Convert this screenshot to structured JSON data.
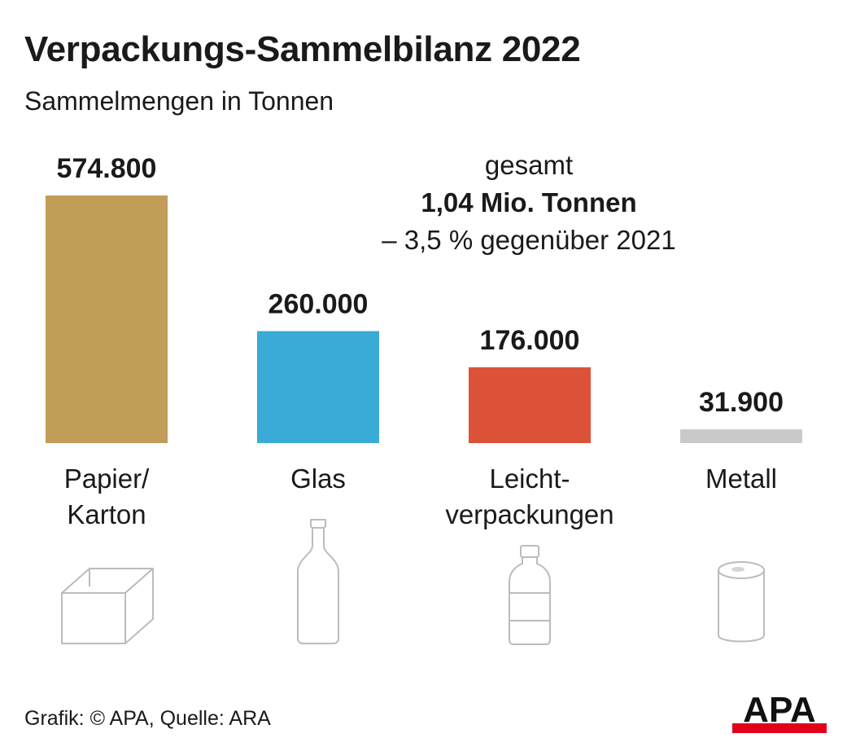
{
  "title": "Verpackungs-Sammelbilanz 2022",
  "subtitle": "Sammelmengen in Tonnen",
  "total": {
    "line1": "gesamt",
    "line2": "1,04 Mio. Tonnen",
    "line3": "– 3,5 % gegenüber 2021"
  },
  "chart_data": {
    "type": "bar",
    "title": "Verpackungs-Sammelbilanz 2022",
    "subtitle": "Sammelmengen in Tonnen",
    "categories": [
      "Papier/ Karton",
      "Glas",
      "Leicht­verpackungen",
      "Metall"
    ],
    "values": [
      574800,
      260000,
      176000,
      31900
    ],
    "value_labels": [
      "574.800",
      "260.000",
      "176.000",
      "31.900"
    ],
    "colors": [
      "#c29d57",
      "#3aaad6",
      "#db5238",
      "#c9c9c9"
    ],
    "ylim": [
      0,
      574800
    ],
    "grid": false,
    "legend": "none"
  },
  "categories": [
    {
      "line1": "Papier/",
      "line2": "Karton",
      "icon": "box-icon"
    },
    {
      "line1": "Glas",
      "line2": "",
      "icon": "bottle-icon"
    },
    {
      "line1": "Leicht-",
      "line2": "verpackungen",
      "icon": "plastic-bottle-icon"
    },
    {
      "line1": "Metall",
      "line2": "",
      "icon": "can-icon"
    }
  ],
  "source": "Grafik: © APA, Quelle: ARA",
  "logo_text": "APA",
  "colors": {
    "logo_red": "#e2001a",
    "icon_stroke": "#bcbcbc"
  }
}
